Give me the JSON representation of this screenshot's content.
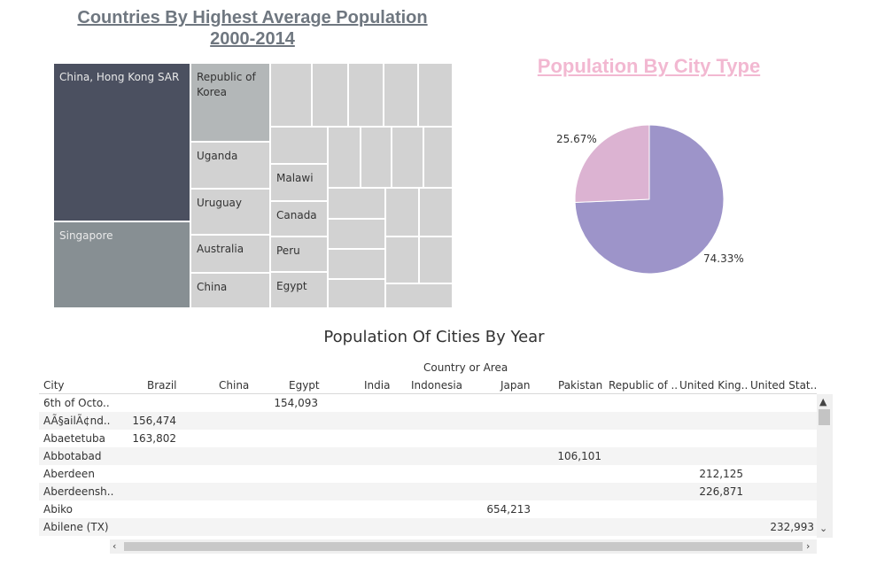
{
  "treemap": {
    "title_line1": "Countries By Highest Average Population",
    "title_line2": "2000-2014",
    "labels": [
      "China, Hong Kong SAR",
      "Singapore",
      "Republic of Korea",
      "Uganda",
      "Uruguay",
      "Australia",
      "China",
      "Malawi",
      "Canada",
      "Peru",
      "Egypt"
    ]
  },
  "pie": {
    "title": "Population By City Type",
    "slices": [
      {
        "value": 74.33,
        "label": "74.33%",
        "color": "#9d94c9"
      },
      {
        "value": 25.67,
        "label": "25.67%",
        "color": "#dcb3d2"
      }
    ]
  },
  "table": {
    "title": "Population Of Cities By Year",
    "group_header": "Country or Area",
    "row_header": "City",
    "columns": [
      "Brazil",
      "China",
      "Egypt",
      "India",
      "Indonesia",
      "Japan",
      "Pakistan",
      "Republic of ..",
      "United King..",
      "United Stat.."
    ],
    "rows": [
      {
        "city": "6th of Octo..",
        "values": [
          "",
          "",
          "154,093",
          "",
          "",
          "",
          "",
          "",
          "",
          ""
        ]
      },
      {
        "city": "AÃ§ailÃ¢nd..",
        "values": [
          "156,474",
          "",
          "",
          "",
          "",
          "",
          "",
          "",
          "",
          ""
        ]
      },
      {
        "city": "Abaetetuba",
        "values": [
          "163,802",
          "",
          "",
          "",
          "",
          "",
          "",
          "",
          "",
          ""
        ]
      },
      {
        "city": "Abbotabad",
        "values": [
          "",
          "",
          "",
          "",
          "",
          "",
          "106,101",
          "",
          "",
          ""
        ]
      },
      {
        "city": "Aberdeen",
        "values": [
          "",
          "",
          "",
          "",
          "",
          "",
          "",
          "",
          "212,125",
          ""
        ]
      },
      {
        "city": "Aberdeensh..",
        "values": [
          "",
          "",
          "",
          "",
          "",
          "",
          "",
          "",
          "226,871",
          ""
        ]
      },
      {
        "city": "Abiko",
        "values": [
          "",
          "",
          "",
          "",
          "",
          "654,213",
          "",
          "",
          "",
          ""
        ]
      },
      {
        "city": "Abilene (TX)",
        "values": [
          "",
          "",
          "",
          "",
          "",
          "",
          "",
          "",
          "",
          "232,993"
        ]
      }
    ]
  },
  "colors": {
    "treemap_dark": "#4b5060",
    "treemap_mid": "#878f93",
    "title_pink": "#f2b8d1"
  }
}
